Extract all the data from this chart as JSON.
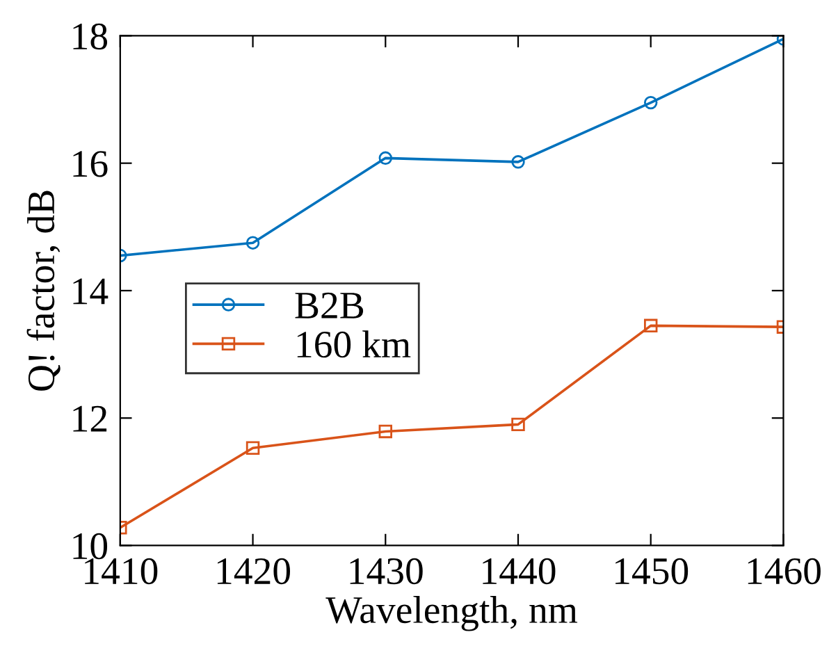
{
  "chart_data": {
    "type": "line",
    "xlabel": "Wavelength, nm",
    "ylabel": "Q! factor, dB",
    "x": [
      1410,
      1420,
      1430,
      1440,
      1450,
      1460
    ],
    "series": [
      {
        "name": "B2B",
        "color": "#0072bd",
        "marker": "circle",
        "values": [
          14.55,
          14.75,
          16.08,
          16.02,
          16.95,
          17.95
        ]
      },
      {
        "name": "160 km",
        "color": "#d95319",
        "marker": "square",
        "values": [
          10.28,
          11.53,
          11.79,
          11.9,
          13.45,
          13.43
        ]
      }
    ],
    "xlim": [
      1410,
      1460
    ],
    "xticks": [
      1410,
      1420,
      1430,
      1440,
      1450,
      1460
    ],
    "ylim": [
      10,
      18
    ],
    "yticks": [
      10,
      12,
      14,
      16,
      18
    ],
    "grid": false,
    "legend": "left",
    "line_style": "solid"
  }
}
